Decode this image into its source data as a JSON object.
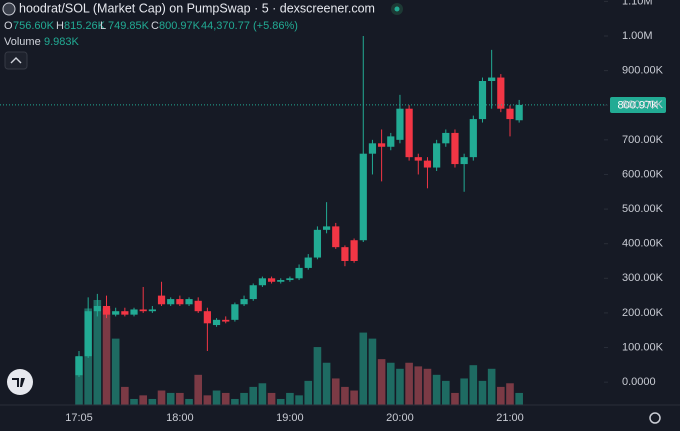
{
  "header": {
    "title": "hoodrat/SOL (Market Cap) on PumpSwap · 5 · dexscreener.com",
    "open_label": "O",
    "open": "756.60K",
    "high_label": "H",
    "high": "815.26K",
    "low_label": "L",
    "low": "749.85K",
    "close_label": "C",
    "close": "800.97K",
    "change": "44,370.77 (+5.86%)",
    "volume_label": "Volume",
    "volume": "9.983K",
    "last_price": "800.97K"
  },
  "chart_data": {
    "type": "candlestick",
    "x": [
      "17:05",
      "17:10",
      "17:15",
      "17:20",
      "17:25",
      "17:30",
      "17:35",
      "17:40",
      "17:45",
      "17:50",
      "17:55",
      "18:00",
      "18:05",
      "18:10",
      "18:15",
      "18:20",
      "18:25",
      "18:30",
      "18:35",
      "18:40",
      "18:45",
      "18:50",
      "18:55",
      "19:00",
      "19:05",
      "19:10",
      "19:15",
      "19:20",
      "19:25",
      "19:30",
      "19:35",
      "19:40",
      "19:45",
      "19:50",
      "19:55",
      "20:00",
      "20:05",
      "20:10",
      "20:15",
      "20:20",
      "20:25",
      "20:30",
      "20:35",
      "20:40",
      "20:45",
      "20:50",
      "20:55",
      "21:00",
      "21:05"
    ],
    "open": [
      20000,
      75000,
      205000,
      220000,
      195000,
      205000,
      195000,
      210000,
      205000,
      250000,
      225000,
      240000,
      225000,
      235000,
      205000,
      165000,
      180000,
      180000,
      225000,
      240000,
      280000,
      300000,
      290000,
      295000,
      300000,
      330000,
      360000,
      440000,
      450000,
      390000,
      410000,
      410000,
      660000,
      690000,
      680000,
      700000,
      790000,
      650000,
      640000,
      620000,
      690000,
      720000,
      630000,
      650000,
      760000,
      870000,
      880000,
      790000,
      756600
    ],
    "high": [
      90000,
      245000,
      255000,
      250000,
      215000,
      215000,
      215000,
      275000,
      220000,
      290000,
      245000,
      250000,
      245000,
      245000,
      215000,
      185000,
      190000,
      230000,
      250000,
      285000,
      305000,
      305000,
      300000,
      305000,
      340000,
      370000,
      450000,
      520000,
      460000,
      395000,
      415000,
      1000000,
      700000,
      730000,
      720000,
      830000,
      800000,
      660000,
      650000,
      700000,
      730000,
      730000,
      660000,
      770000,
      880000,
      960000,
      890000,
      800000,
      815260
    ],
    "low": [
      15000,
      70000,
      190000,
      185000,
      190000,
      190000,
      190000,
      200000,
      200000,
      220000,
      220000,
      220000,
      220000,
      200000,
      90000,
      160000,
      170000,
      175000,
      220000,
      235000,
      275000,
      285000,
      285000,
      290000,
      295000,
      325000,
      355000,
      430000,
      385000,
      335000,
      345000,
      405000,
      600000,
      580000,
      670000,
      690000,
      640000,
      600000,
      560000,
      610000,
      680000,
      620000,
      550000,
      640000,
      750000,
      790000,
      780000,
      710000,
      749850
    ],
    "close": [
      75000,
      205000,
      220000,
      195000,
      205000,
      195000,
      210000,
      205000,
      210000,
      225000,
      240000,
      225000,
      240000,
      205000,
      170000,
      180000,
      175000,
      225000,
      240000,
      280000,
      300000,
      290000,
      295000,
      300000,
      330000,
      360000,
      440000,
      450000,
      390000,
      350000,
      350000,
      660000,
      690000,
      680000,
      710000,
      790000,
      650000,
      640000,
      620000,
      690000,
      720000,
      630000,
      650000,
      760000,
      870000,
      880000,
      790000,
      760000,
      800970
    ],
    "volume": [
      40000,
      80000,
      87000,
      80000,
      55000,
      15000,
      5000,
      8000,
      5000,
      12000,
      10000,
      10000,
      5000,
      25000,
      8000,
      12000,
      10000,
      5000,
      10000,
      15000,
      18000,
      10000,
      5000,
      10000,
      8000,
      20000,
      48000,
      35000,
      22000,
      15000,
      12000,
      60000,
      55000,
      38000,
      35000,
      30000,
      35000,
      32000,
      30000,
      25000,
      20000,
      10000,
      22000,
      33000,
      20000,
      30000,
      15000,
      18000,
      9983
    ],
    "up_color": "#22ab94",
    "down_color": "#f23645",
    "volume_up_color": "#1e6b62",
    "volume_down_color": "#7b3a45",
    "ylim": [
      -66000,
      1104000
    ],
    "yticks": [
      {
        "value": 0,
        "label": "0.0000"
      },
      {
        "value": 100000,
        "label": "100.00K"
      },
      {
        "value": 200000,
        "label": "200.00K"
      },
      {
        "value": 300000,
        "label": "300.00K"
      },
      {
        "value": 400000,
        "label": "400.00K"
      },
      {
        "value": 500000,
        "label": "500.00K"
      },
      {
        "value": 600000,
        "label": "600.00K"
      },
      {
        "value": 700000,
        "label": "700.00K"
      },
      {
        "value": 800000,
        "label": "800.00K"
      },
      {
        "value": 900000,
        "label": "900.00K"
      },
      {
        "value": 1000000,
        "label": "1.00M"
      },
      {
        "value": 1100000,
        "label": "1.10M"
      }
    ],
    "xticks": [
      "17:05",
      "18:00",
      "19:00",
      "20:00",
      "21:00"
    ]
  }
}
